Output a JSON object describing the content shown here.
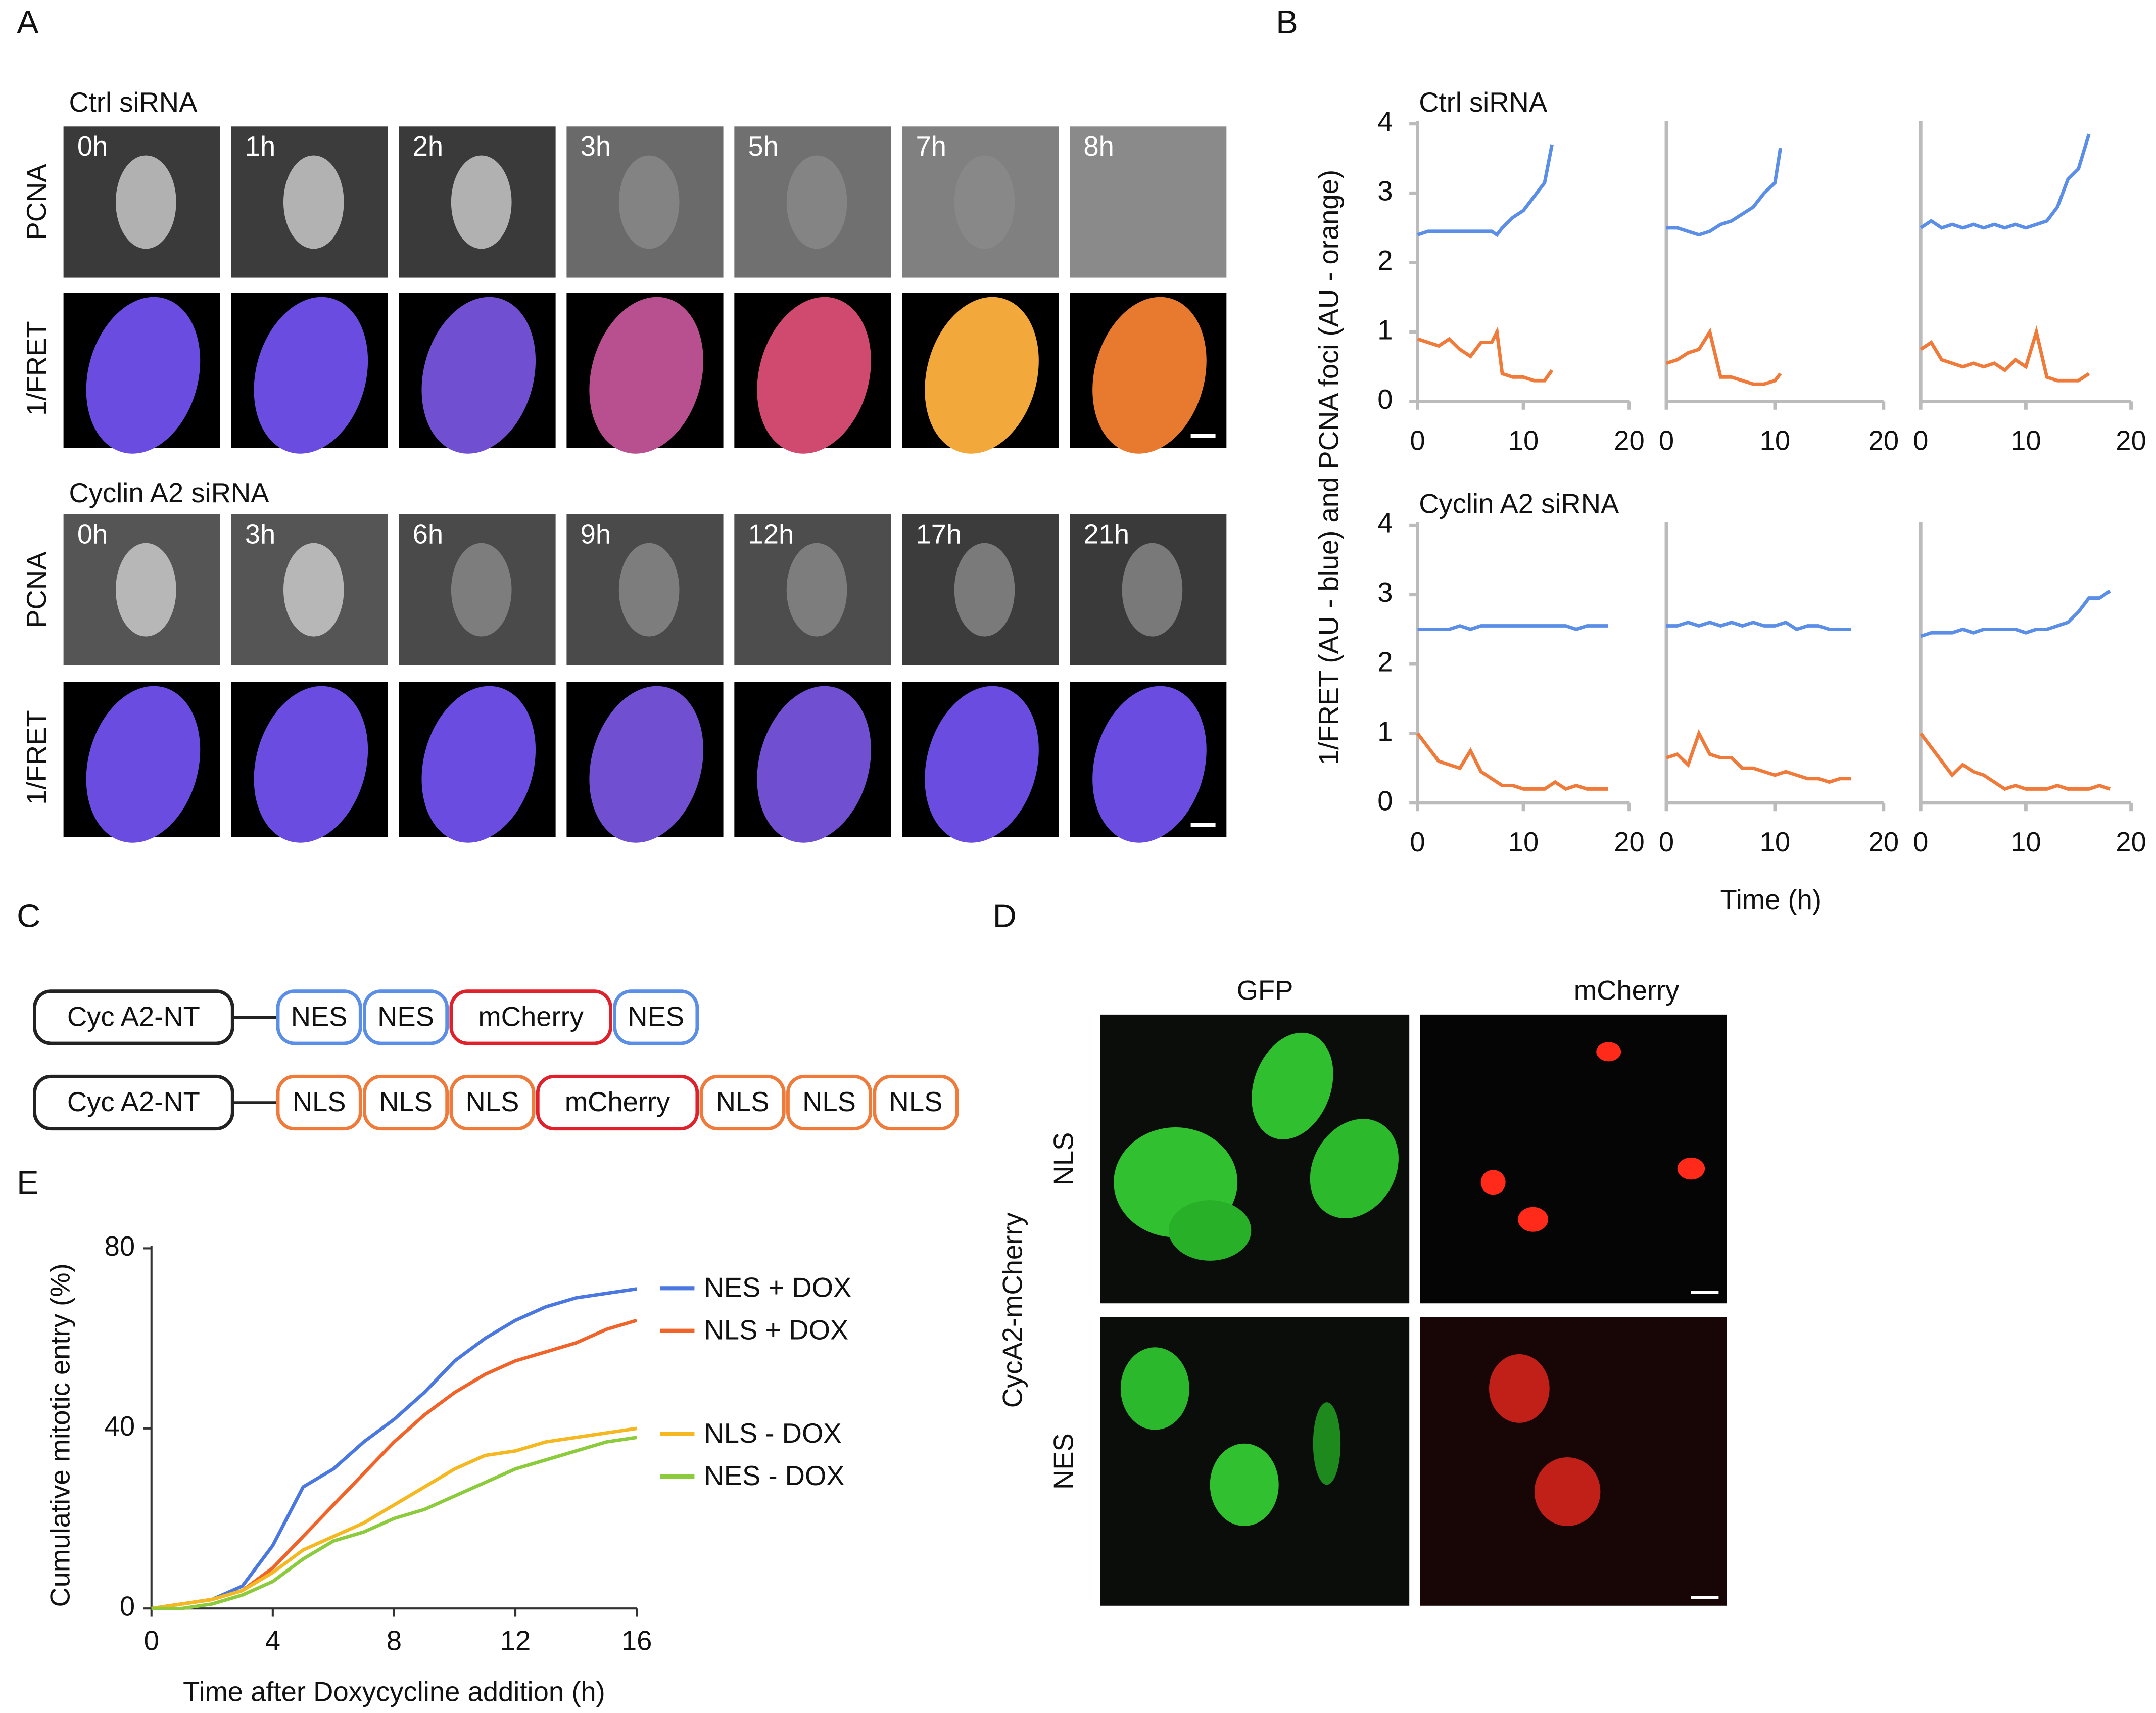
{
  "panel_a": {
    "label": "A",
    "groups": [
      {
        "title": "Ctrl siRNA",
        "rows": [
          "PCNA",
          "1/FRET"
        ],
        "times": [
          "0h",
          "1h",
          "2h",
          "3h",
          "5h",
          "7h",
          "8h"
        ]
      },
      {
        "title": "Cyclin A2 siRNA",
        "rows": [
          "PCNA",
          "1/FRET"
        ],
        "times": [
          "0h",
          "3h",
          "6h",
          "9h",
          "12h",
          "17h",
          "21h"
        ]
      }
    ]
  },
  "panel_b": {
    "label": "B",
    "ylabel": "1/FRET (AU - blue) and PCNA foci (AU - orange)",
    "xlabel": "Time (h)",
    "row_titles": [
      "Ctrl siRNA",
      "Cyclin A2 siRNA"
    ]
  },
  "panel_c": {
    "label": "C",
    "constructs": [
      [
        {
          "label": "Cyc A2-NT",
          "color": "#222222"
        },
        {
          "label": "NES",
          "color": "#5b8ee6"
        },
        {
          "label": "NES",
          "color": "#5b8ee6"
        },
        {
          "label": "mCherry",
          "color": "#e0202a"
        },
        {
          "label": "NES",
          "color": "#5b8ee6"
        }
      ],
      [
        {
          "label": "Cyc A2-NT",
          "color": "#222222"
        },
        {
          "label": "NLS",
          "color": "#f07a3a"
        },
        {
          "label": "NLS",
          "color": "#f07a3a"
        },
        {
          "label": "NLS",
          "color": "#f07a3a"
        },
        {
          "label": "mCherry",
          "color": "#e0202a"
        },
        {
          "label": "NLS",
          "color": "#f07a3a"
        },
        {
          "label": "NLS",
          "color": "#f07a3a"
        },
        {
          "label": "NLS",
          "color": "#f07a3a"
        }
      ]
    ]
  },
  "panel_d": {
    "label": "D",
    "columns": [
      "GFP",
      "mCherry"
    ],
    "rows": [
      "NLS",
      "NES"
    ],
    "ylabel": "CycA2-mCherry"
  },
  "panel_e": {
    "label": "E"
  },
  "chart_data": [
    {
      "type": "line",
      "x": [
        0,
        1,
        2,
        3,
        4,
        5,
        6,
        7,
        7.5,
        8,
        9,
        10,
        11,
        12,
        12.7
      ],
      "xlim": [
        0,
        20
      ],
      "xticks": [
        0,
        10,
        20
      ],
      "ylim": [
        0,
        4
      ],
      "yticks": [
        0,
        1,
        2,
        3,
        4
      ],
      "series": [
        {
          "color": "#5b8ee6",
          "values": [
            2.4,
            2.45,
            2.45,
            2.45,
            2.45,
            2.45,
            2.45,
            2.45,
            2.4,
            2.5,
            2.65,
            2.75,
            2.95,
            3.15,
            3.7
          ]
        },
        {
          "color": "#f07a3a",
          "values": [
            0.9,
            0.85,
            0.8,
            0.9,
            0.75,
            0.65,
            0.85,
            0.85,
            1.0,
            0.4,
            0.35,
            0.35,
            0.3,
            0.3,
            0.45
          ]
        }
      ]
    },
    {
      "type": "line",
      "x": [
        0,
        1,
        2,
        3,
        4,
        5,
        6,
        7,
        8,
        9,
        10,
        10.5
      ],
      "xlim": [
        0,
        20
      ],
      "xticks": [
        0,
        10,
        20
      ],
      "ylim": [
        0,
        4
      ],
      "series": [
        {
          "color": "#5b8ee6",
          "values": [
            2.5,
            2.5,
            2.45,
            2.4,
            2.45,
            2.55,
            2.6,
            2.7,
            2.8,
            3.0,
            3.15,
            3.65
          ]
        },
        {
          "color": "#f07a3a",
          "values": [
            0.55,
            0.6,
            0.7,
            0.75,
            1.0,
            0.35,
            0.35,
            0.3,
            0.25,
            0.25,
            0.3,
            0.4
          ]
        }
      ]
    },
    {
      "type": "line",
      "x": [
        0,
        1,
        2,
        3,
        4,
        5,
        6,
        7,
        8,
        9,
        10,
        11,
        12,
        13,
        14,
        15,
        16
      ],
      "xlim": [
        0,
        20
      ],
      "xticks": [
        0,
        10,
        20
      ],
      "ylim": [
        0,
        4
      ],
      "series": [
        {
          "color": "#5b8ee6",
          "values": [
            2.5,
            2.6,
            2.5,
            2.55,
            2.5,
            2.55,
            2.5,
            2.55,
            2.5,
            2.55,
            2.5,
            2.55,
            2.6,
            2.8,
            3.2,
            3.35,
            3.85
          ]
        },
        {
          "color": "#f07a3a",
          "values": [
            0.75,
            0.85,
            0.6,
            0.55,
            0.5,
            0.55,
            0.5,
            0.55,
            0.45,
            0.6,
            0.5,
            1.0,
            0.35,
            0.3,
            0.3,
            0.3,
            0.4
          ]
        }
      ]
    },
    {
      "type": "line",
      "x": [
        0,
        1,
        2,
        3,
        4,
        5,
        6,
        7,
        8,
        9,
        10,
        11,
        12,
        13,
        14,
        15,
        16,
        17,
        18
      ],
      "xlim": [
        0,
        20
      ],
      "xticks": [
        0,
        10,
        20
      ],
      "ylim": [
        0,
        4
      ],
      "yticks": [
        0,
        1,
        2,
        3,
        4
      ],
      "series": [
        {
          "color": "#5b8ee6",
          "values": [
            2.5,
            2.5,
            2.5,
            2.5,
            2.55,
            2.5,
            2.55,
            2.55,
            2.55,
            2.55,
            2.55,
            2.55,
            2.55,
            2.55,
            2.55,
            2.5,
            2.55,
            2.55,
            2.55
          ]
        },
        {
          "color": "#f07a3a",
          "values": [
            1.0,
            0.8,
            0.6,
            0.55,
            0.5,
            0.75,
            0.45,
            0.35,
            0.25,
            0.25,
            0.2,
            0.2,
            0.2,
            0.3,
            0.2,
            0.25,
            0.2,
            0.2,
            0.2
          ]
        }
      ]
    },
    {
      "type": "line",
      "x": [
        0,
        1,
        2,
        3,
        4,
        5,
        6,
        7,
        8,
        9,
        10,
        11,
        12,
        13,
        14,
        15,
        16,
        17
      ],
      "xlim": [
        0,
        20
      ],
      "xticks": [
        0,
        10,
        20
      ],
      "ylim": [
        0,
        4
      ],
      "series": [
        {
          "color": "#5b8ee6",
          "values": [
            2.55,
            2.55,
            2.6,
            2.55,
            2.6,
            2.55,
            2.6,
            2.55,
            2.6,
            2.55,
            2.55,
            2.6,
            2.5,
            2.55,
            2.55,
            2.5,
            2.5,
            2.5
          ]
        },
        {
          "color": "#f07a3a",
          "values": [
            0.65,
            0.7,
            0.55,
            1.0,
            0.7,
            0.65,
            0.65,
            0.5,
            0.5,
            0.45,
            0.4,
            0.45,
            0.4,
            0.35,
            0.35,
            0.3,
            0.35,
            0.35
          ]
        }
      ]
    },
    {
      "type": "line",
      "x": [
        0,
        1,
        2,
        3,
        4,
        5,
        6,
        7,
        8,
        9,
        10,
        11,
        12,
        13,
        14,
        15,
        16,
        17,
        18
      ],
      "xlim": [
        0,
        20
      ],
      "xticks": [
        0,
        10,
        20
      ],
      "ylim": [
        0,
        4
      ],
      "series": [
        {
          "color": "#5b8ee6",
          "values": [
            2.4,
            2.45,
            2.45,
            2.45,
            2.5,
            2.45,
            2.5,
            2.5,
            2.5,
            2.5,
            2.45,
            2.5,
            2.5,
            2.55,
            2.6,
            2.75,
            2.95,
            2.95,
            3.05
          ]
        },
        {
          "color": "#f07a3a",
          "values": [
            1.0,
            0.8,
            0.6,
            0.4,
            0.55,
            0.45,
            0.4,
            0.3,
            0.2,
            0.25,
            0.2,
            0.2,
            0.2,
            0.25,
            0.2,
            0.2,
            0.2,
            0.25,
            0.2
          ]
        }
      ]
    },
    {
      "type": "line",
      "xlabel": "Time after Doxycycline addition (h)",
      "ylabel": "Cumulative mitotic entry (%)",
      "x": [
        0,
        1,
        2,
        3,
        4,
        5,
        6,
        7,
        8,
        9,
        10,
        11,
        12,
        13,
        14,
        15,
        16
      ],
      "xlim": [
        0,
        16
      ],
      "xticks": [
        0,
        4,
        8,
        12,
        16
      ],
      "ylim": [
        0,
        80
      ],
      "yticks": [
        0,
        40,
        80
      ],
      "series": [
        {
          "name": "NES + DOX",
          "color": "#4a78e0",
          "values": [
            0,
            1,
            2,
            5,
            14,
            27,
            31,
            37,
            42,
            48,
            55,
            60,
            64,
            67,
            69,
            70,
            71
          ]
        },
        {
          "name": "NLS + DOX",
          "color": "#f0642a",
          "values": [
            0,
            1,
            2,
            4,
            9,
            16,
            23,
            30,
            37,
            43,
            48,
            52,
            55,
            57,
            59,
            62,
            64
          ]
        },
        {
          "name": "NLS - DOX",
          "color": "#f5b820",
          "values": [
            0,
            1,
            2,
            4,
            8,
            13,
            16,
            19,
            23,
            27,
            31,
            34,
            35,
            37,
            38,
            39,
            40
          ]
        },
        {
          "name": "NES - DOX",
          "color": "#8ccc3c",
          "values": [
            0,
            0,
            1,
            3,
            6,
            11,
            15,
            17,
            20,
            22,
            25,
            28,
            31,
            33,
            35,
            37,
            38
          ]
        }
      ]
    }
  ]
}
